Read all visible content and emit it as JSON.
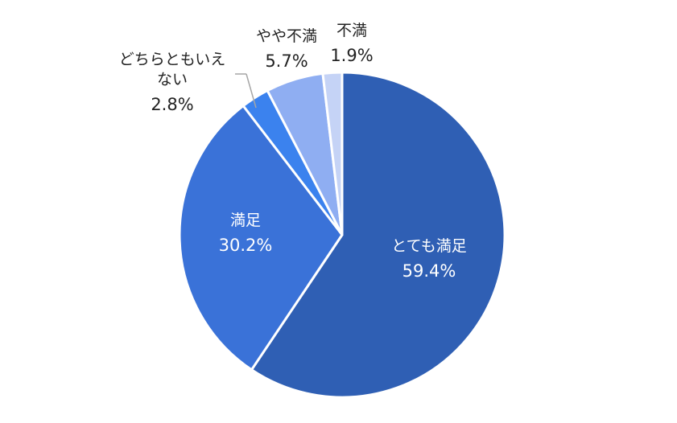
{
  "chart_data": {
    "type": "pie",
    "slices": [
      {
        "label": "とても満足",
        "value": 59.4,
        "display": "59.4%",
        "color": "#2F5FB4"
      },
      {
        "label": "満足",
        "value": 30.2,
        "display": "30.2%",
        "color": "#3A72D8"
      },
      {
        "label": "どちらともいえない",
        "value": 2.8,
        "display": "2.8%",
        "color": "#3B82EE",
        "label_lines": [
          "どちらともいえ",
          "ない"
        ]
      },
      {
        "label": "やや不満",
        "value": 5.7,
        "display": "5.7%",
        "color": "#8FAEF2"
      },
      {
        "label": "不満",
        "value": 1.9,
        "display": "1.9%",
        "color": "#C5D3F6"
      }
    ],
    "start_angle_deg": 0,
    "direction": "clockwise",
    "legend": "none",
    "slice_border_color": "#ffffff",
    "leader_line_color": "#a6a6a6",
    "inside_label_color": "#ffffff",
    "outside_label_color": "#222222"
  }
}
